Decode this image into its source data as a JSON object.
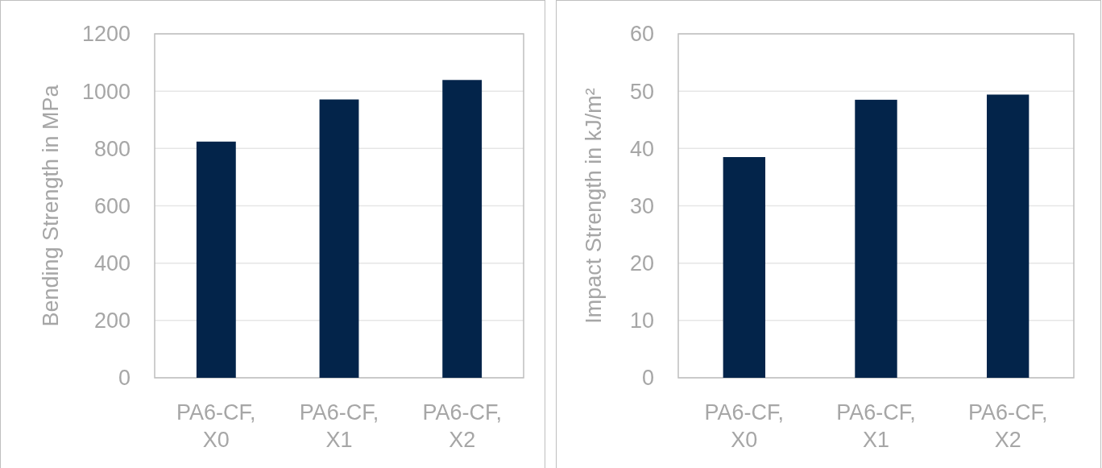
{
  "chart_data": [
    {
      "type": "bar",
      "ylabel": "Bending Strength in MPa",
      "categories": [
        "PA6-CF, X0",
        "PA6-CF, X1",
        "PA6-CF, X2"
      ],
      "values": [
        824,
        971,
        1039
      ],
      "color": "#03244a",
      "ylim": [
        0,
        1200
      ],
      "yticks": [
        0,
        200,
        400,
        600,
        800,
        1000,
        1200
      ],
      "grid": "y"
    },
    {
      "type": "bar",
      "ylabel": "Impact Strength in kJ/m²",
      "categories": [
        "PA6-CF, X0",
        "PA6-CF, X1",
        "PA6-CF, X2"
      ],
      "values": [
        38.5,
        48.5,
        49.4
      ],
      "color": "#03244a",
      "ylim": [
        0,
        60
      ],
      "yticks": [
        0,
        10,
        20,
        30,
        40,
        50,
        60
      ],
      "grid": "y"
    }
  ]
}
